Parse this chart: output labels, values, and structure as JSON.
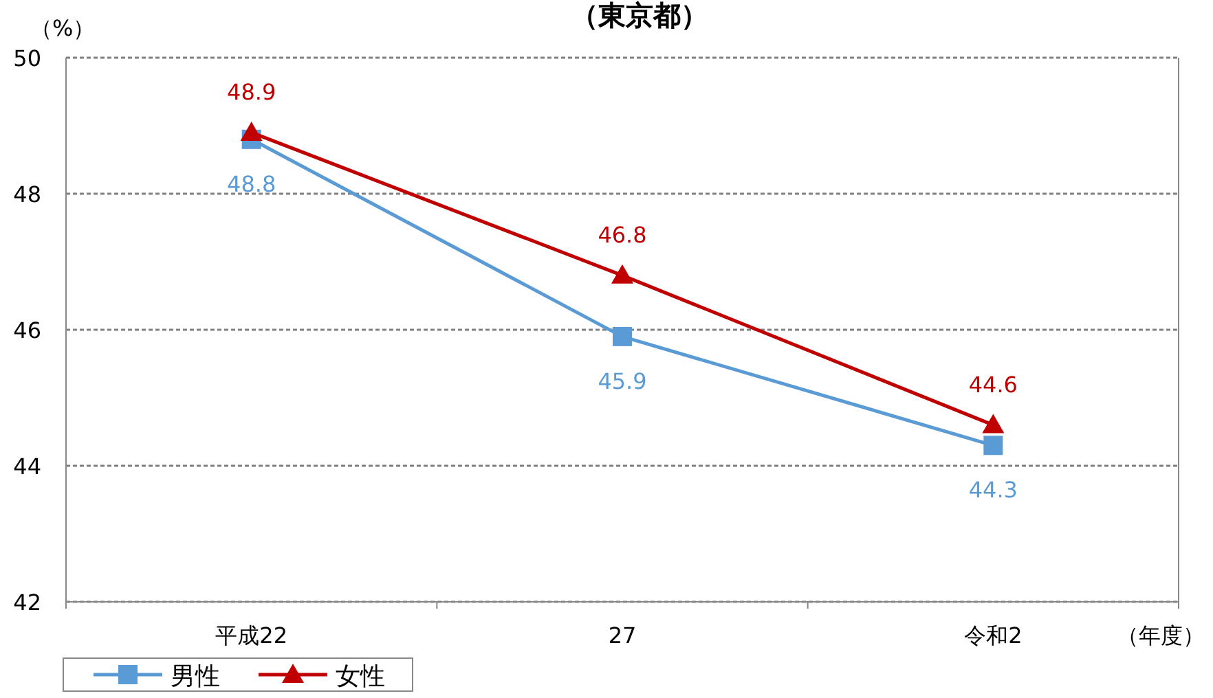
{
  "chart_data": {
    "type": "line",
    "title": "（東京都）",
    "ylabel": "（%）",
    "xlabel": "（年度）",
    "categories": [
      "平成22",
      "27",
      "令和2"
    ],
    "series": [
      {
        "name": "男性",
        "color": "#5b9bd5",
        "values": [
          48.8,
          45.9,
          44.3
        ],
        "marker": "square"
      },
      {
        "name": "女性",
        "color": "#c00000",
        "values": [
          48.9,
          46.8,
          44.6
        ],
        "marker": "triangle"
      }
    ],
    "ylim": [
      42,
      50
    ],
    "yticks": [
      42,
      44,
      46,
      48,
      50
    ],
    "grid": "y",
    "legend": "bottom left",
    "data_labels": true
  }
}
